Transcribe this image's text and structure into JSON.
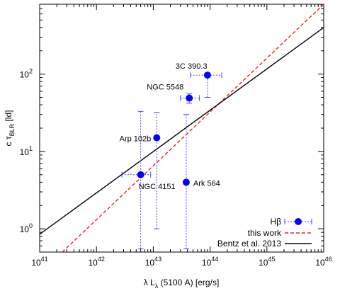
{
  "chart_data": {
    "type": "scatter",
    "xlabel": {
      "main": "λ L",
      "sub": "λ",
      "rest": " (5100 A) [erg/s]"
    },
    "ylabel": {
      "main": "c τ",
      "sub": "BLR",
      "rest": " [ld]"
    },
    "x_scale": "log",
    "y_scale": "log",
    "xlim": [
      1e+41,
      1e+46
    ],
    "ylim": [
      0.5,
      800
    ],
    "grid": false,
    "legend_position": "bottom-right",
    "x_ticks": [
      {
        "value": 1e+41,
        "base": "10",
        "exp": "41"
      },
      {
        "value": 1e+42,
        "base": "10",
        "exp": "42"
      },
      {
        "value": 1e+43,
        "base": "10",
        "exp": "43"
      },
      {
        "value": 1e+44,
        "base": "10",
        "exp": "44"
      },
      {
        "value": 1e+45,
        "base": "10",
        "exp": "45"
      },
      {
        "value": 1e+46,
        "base": "10",
        "exp": "46"
      }
    ],
    "y_ticks": [
      {
        "value": 1,
        "base": "10",
        "exp": "0"
      },
      {
        "value": 10,
        "base": "10",
        "exp": "1"
      },
      {
        "value": 100,
        "base": "10",
        "exp": "2"
      }
    ],
    "points": [
      {
        "label": "3C 390.3",
        "x": 9e+43,
        "y": 97,
        "x_err": [
          4.5e+43,
          1.6e+44
        ],
        "y_err": [
          50,
          97
        ]
      },
      {
        "label": "NGC 5548",
        "x": 4.3e+43,
        "y": 49,
        "x_err": [
          3e+43,
          6.5e+43
        ],
        "y_err": [
          42,
          56
        ]
      },
      {
        "label": "Arp 102b",
        "x": 1.15e+43,
        "y": 15,
        "x_err": [
          1.15e+43,
          1.15e+43
        ],
        "y_err": [
          1.0,
          32
        ]
      },
      {
        "label": "NGC 4151",
        "x": 6e+42,
        "y": 5,
        "x_err": [
          2.8e+42,
          9e+42
        ],
        "y_err": [
          0.55,
          33
        ]
      },
      {
        "label": "Ark 564",
        "x": 3.8e+43,
        "y": 4,
        "x_err": [
          3.8e+43,
          3.8e+43
        ],
        "y_err": [
          0.55,
          30
        ]
      }
    ],
    "lines": [
      {
        "name": "this work",
        "color": "#e8231f",
        "dash": "5,3",
        "x": [
          2.5e+41,
          1e+46
        ],
        "y": [
          0.5,
          800
        ]
      },
      {
        "name": "Bentz et al. 2013",
        "color": "#000000",
        "dash": "",
        "x": [
          1e+41,
          1e+46
        ],
        "y": [
          0.85,
          400
        ]
      }
    ],
    "legend": [
      {
        "label": "Hβ",
        "kind": "points",
        "color": "#0000ff"
      },
      {
        "label": "this work",
        "kind": "line",
        "color": "#e8231f"
      },
      {
        "label": "Bentz et al. 2013",
        "kind": "line",
        "color": "#000000"
      }
    ],
    "colors": {
      "points": "#0000ff",
      "errorbars": "#4a4aff",
      "fit": "#e8231f",
      "bentz": "#000000"
    }
  }
}
